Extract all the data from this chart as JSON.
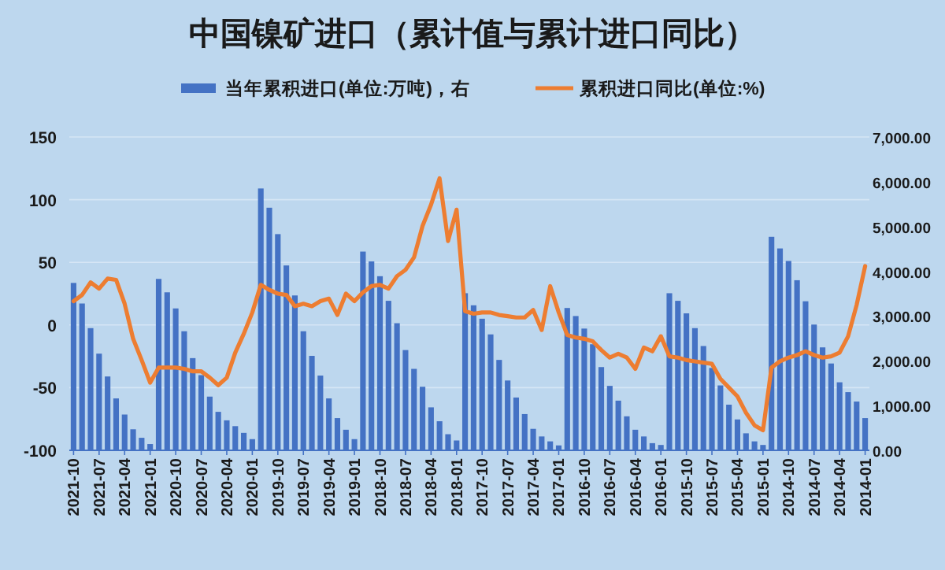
{
  "chart_data": {
    "type": "bar",
    "title": "中国镍矿进口（累计值与累计进口同比）",
    "categories": [
      "2021-10",
      null,
      null,
      "2021-07",
      null,
      null,
      "2021-04",
      null,
      null,
      "2021-01",
      null,
      null,
      "2020-10",
      null,
      null,
      "2020-07",
      null,
      null,
      "2020-04",
      null,
      null,
      "2020-01",
      null,
      null,
      "2019-10",
      null,
      null,
      "2019-07",
      null,
      null,
      "2019-04",
      null,
      null,
      "2019-01",
      null,
      null,
      "2018-10",
      null,
      null,
      "2018-07",
      null,
      null,
      "2018-04",
      null,
      null,
      "2018-01",
      null,
      null,
      "2017-10",
      null,
      null,
      "2017-07",
      null,
      null,
      "2017-04",
      null,
      null,
      "2017-01",
      null,
      null,
      "2016-10",
      null,
      null,
      "2016-07",
      null,
      null,
      "2016-04",
      null,
      null,
      "2016-01",
      null,
      null,
      "2015-10",
      null,
      null,
      "2015-07",
      null,
      null,
      "2015-04",
      null,
      null,
      "2015-01",
      null,
      null,
      "2014-10",
      null,
      null,
      "2014-07",
      null,
      null,
      "2014-04",
      null,
      null,
      "2014-01"
    ],
    "series": [
      {
        "name": "当年累积进口(单位:万吨)，右",
        "axis": "y2",
        "color": "#4472c4",
        "values": [
          3740,
          3280,
          2730,
          2160,
          1650,
          1160,
          800,
          470,
          280,
          140,
          3830,
          3530,
          3170,
          2660,
          2060,
          1680,
          1200,
          860,
          670,
          540,
          390,
          250,
          5850,
          5420,
          4830,
          4130,
          3460,
          2660,
          2110,
          1670,
          1160,
          720,
          460,
          250,
          4440,
          4220,
          3890,
          3340,
          2840,
          2240,
          1820,
          1420,
          960,
          650,
          360,
          220,
          3510,
          3240,
          2940,
          2590,
          2020,
          1560,
          1180,
          810,
          480,
          310,
          200,
          110,
          3180,
          3000,
          2720,
          2370,
          1860,
          1440,
          1110,
          760,
          460,
          310,
          160,
          120,
          3510,
          3340,
          3060,
          2730,
          2330,
          1840,
          1450,
          1020,
          690,
          380,
          200,
          120,
          4770,
          4510,
          4230,
          3800,
          3330,
          2810,
          2300,
          1940,
          1520,
          1300,
          1090,
          720
        ]
      },
      {
        "name": "累积进口同比(单位:%)",
        "type": "line",
        "color": "#ed7d31",
        "values": [
          19,
          24,
          34,
          29,
          37,
          36,
          17,
          -11,
          -28,
          -46,
          -34,
          -34,
          -34,
          -35,
          -37,
          -37,
          -42,
          -48,
          -42,
          -22,
          -7,
          10,
          32,
          28,
          25,
          24,
          15,
          17,
          15,
          19,
          21,
          8,
          25,
          19,
          26,
          31,
          32,
          29,
          39,
          44,
          54,
          79,
          96,
          117,
          67,
          92,
          11,
          9,
          10,
          10,
          8,
          7,
          6,
          6,
          12,
          -4,
          31,
          10,
          -8,
          -10,
          -11,
          -13,
          -20,
          -26,
          -23,
          -26,
          -35,
          -18,
          -21,
          -9,
          -25,
          -26,
          -28,
          -29,
          -30,
          -31,
          -43,
          -50,
          -57,
          -70,
          -80,
          -84,
          -34,
          -29,
          -26,
          -24,
          -21,
          -24,
          -26,
          -25,
          -22,
          -9,
          16,
          47
        ]
      }
    ],
    "ylim": [
      -100,
      150
    ],
    "yticks": [
      -100,
      -50,
      0,
      50,
      100,
      150
    ],
    "y2lim": [
      0,
      7000
    ],
    "y2ticks": [
      {
        "value": 0,
        "label": "0.00"
      },
      {
        "value": 1000,
        "label": "1,000.00"
      },
      {
        "value": 2000,
        "label": "2,000.00"
      },
      {
        "value": 3000,
        "label": "3,000.00"
      },
      {
        "value": 4000,
        "label": "4,000.00"
      },
      {
        "value": 5000,
        "label": "5,000.00"
      },
      {
        "value": 6000,
        "label": "6,000.00"
      },
      {
        "value": 7000,
        "label": "7,000.00"
      }
    ],
    "grid": "y",
    "legend": "top"
  }
}
